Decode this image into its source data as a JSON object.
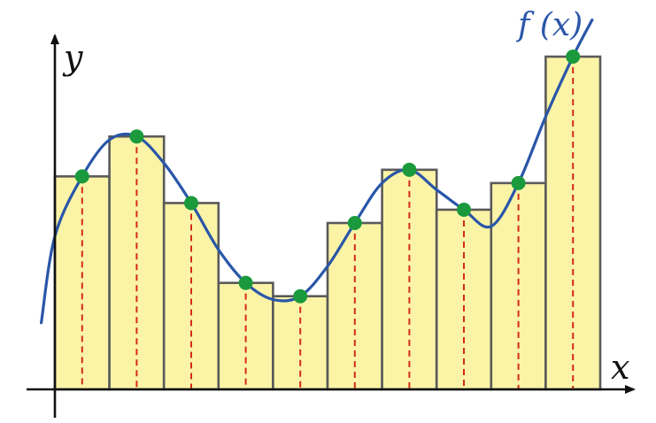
{
  "labels": {
    "x_axis": "x",
    "y_axis": "y",
    "function": "f (x)"
  },
  "colors": {
    "bar_fill": "#fbf4a6",
    "bar_stroke": "#5a5a5a",
    "curve": "#2a56a8",
    "sample_point": "#1a9a3c",
    "sample_line": "#d42a1c",
    "axis": "#111111"
  },
  "chart_data": {
    "type": "bar",
    "description_kind": "riemann-sum-midpoint",
    "bar_count": 10,
    "bar_heights": [
      0.64,
      0.76,
      0.56,
      0.32,
      0.28,
      0.5,
      0.66,
      0.54,
      0.62,
      1.0
    ],
    "sample_values": [
      0.64,
      0.76,
      0.56,
      0.32,
      0.28,
      0.5,
      0.66,
      0.54,
      0.62,
      1.0
    ],
    "curve_samples": [
      [
        -0.25,
        0.2
      ],
      [
        0.0,
        0.46
      ],
      [
        0.5,
        0.64
      ],
      [
        1.0,
        0.75
      ],
      [
        1.5,
        0.76
      ],
      [
        2.0,
        0.68
      ],
      [
        2.5,
        0.56
      ],
      [
        3.0,
        0.42
      ],
      [
        3.5,
        0.32
      ],
      [
        4.0,
        0.27
      ],
      [
        4.5,
        0.28
      ],
      [
        5.0,
        0.37
      ],
      [
        5.5,
        0.5
      ],
      [
        6.0,
        0.62
      ],
      [
        6.5,
        0.66
      ],
      [
        7.0,
        0.6
      ],
      [
        7.5,
        0.54
      ],
      [
        8.0,
        0.49
      ],
      [
        8.5,
        0.62
      ],
      [
        9.0,
        0.82
      ],
      [
        9.5,
        1.0
      ],
      [
        9.85,
        1.11
      ]
    ]
  }
}
